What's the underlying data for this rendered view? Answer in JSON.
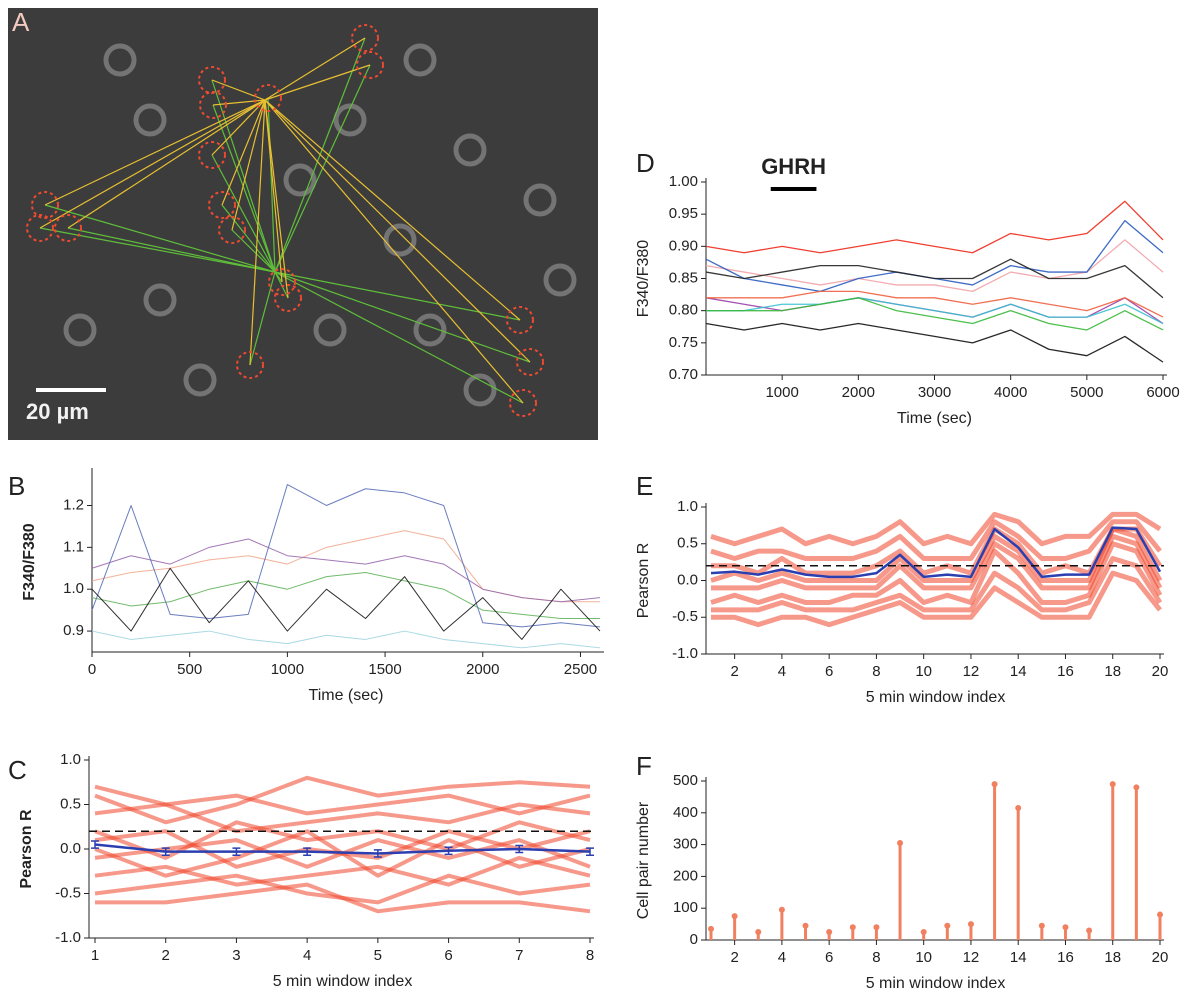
{
  "panel_a": {
    "label": "A",
    "scale_bar": "20 µm"
  },
  "chart_data": [
    {
      "type": "line",
      "panel_label": "B",
      "ylabel": "F340/F380",
      "xlabel": "Time (sec)",
      "xlim": [
        0,
        2600
      ],
      "xticks": [
        0,
        500,
        1000,
        1500,
        2000,
        2500
      ],
      "ylim": [
        0.85,
        1.28
      ],
      "yticks": [
        0.9,
        {
          "value": 1.0,
          "label": "1.0"
        },
        1.1,
        1.2
      ],
      "x": [
        0,
        200,
        400,
        600,
        800,
        1000,
        1200,
        1400,
        1600,
        1800,
        2000,
        2200,
        2400,
        2600
      ],
      "series": [
        {
          "color": "#f2a98f",
          "values": [
            1.02,
            1.04,
            1.05,
            1.07,
            1.08,
            1.06,
            1.1,
            1.12,
            1.14,
            1.12,
            1.0,
            0.98,
            0.97,
            0.97
          ]
        },
        {
          "color": "#9a6aae",
          "values": [
            1.05,
            1.08,
            1.06,
            1.1,
            1.12,
            1.08,
            1.07,
            1.06,
            1.08,
            1.06,
            1.0,
            0.98,
            0.97,
            0.98
          ]
        },
        {
          "color": "#62b55c",
          "values": [
            0.98,
            0.96,
            0.97,
            1.0,
            1.02,
            1.0,
            1.03,
            1.04,
            1.02,
            1.0,
            0.95,
            0.94,
            0.93,
            0.93
          ]
        },
        {
          "color": "#9fd4e0",
          "values": [
            0.9,
            0.88,
            0.89,
            0.9,
            0.88,
            0.87,
            0.89,
            0.88,
            0.9,
            0.88,
            0.87,
            0.86,
            0.87,
            0.86
          ]
        },
        {
          "color": "#5a6fb8",
          "values": [
            0.95,
            1.2,
            0.94,
            0.93,
            0.94,
            1.25,
            1.2,
            1.24,
            1.23,
            1.2,
            0.92,
            0.91,
            0.92,
            0.91
          ]
        },
        {
          "color": "#1a1a1a",
          "values": [
            1.0,
            0.9,
            1.05,
            0.92,
            1.02,
            0.9,
            1.0,
            0.93,
            1.03,
            0.9,
            0.98,
            0.88,
            1.0,
            0.9
          ]
        }
      ]
    },
    {
      "type": "line",
      "panel_label": "C",
      "ylabel": "Pearson R",
      "xlabel": "5 min window index",
      "xlim": [
        1,
        8
      ],
      "xticks": [
        1,
        2,
        3,
        4,
        5,
        6,
        7,
        8
      ],
      "ylim": [
        -1,
        1
      ],
      "yticks": [
        {
          "value": -1,
          "label": "-1.0"
        },
        -0.5,
        {
          "value": 0,
          "label": "0.0"
        },
        0.5,
        {
          "value": 1,
          "label": "1.0"
        }
      ],
      "reference_line": 0.2,
      "x": [
        1,
        2,
        3,
        4,
        5,
        6,
        7,
        8
      ],
      "series": [
        {
          "color": "#f0462a",
          "values": [
            0.6,
            0.3,
            0.5,
            0.8,
            0.6,
            0.7,
            0.75,
            0.7
          ]
        },
        {
          "color": "#f0462a",
          "values": [
            0.4,
            0.5,
            0.2,
            0.3,
            0.4,
            0.3,
            0.5,
            0.4
          ]
        },
        {
          "color": "#f0462a",
          "values": [
            0.2,
            -0.1,
            0.3,
            0.1,
            0.2,
            0.0,
            0.3,
            0.1
          ]
        },
        {
          "color": "#f0462a",
          "values": [
            0.1,
            0.2,
            -0.2,
            0.0,
            -0.1,
            0.2,
            0.0,
            0.2
          ]
        },
        {
          "color": "#f0462a",
          "values": [
            -0.1,
            0.0,
            0.1,
            -0.2,
            0.1,
            -0.1,
            0.1,
            -0.2
          ]
        },
        {
          "color": "#f0462a",
          "values": [
            0.0,
            -0.3,
            -0.1,
            0.2,
            -0.3,
            0.1,
            -0.2,
            0.0
          ]
        },
        {
          "color": "#f0462a",
          "values": [
            -0.3,
            -0.2,
            -0.4,
            -0.3,
            -0.2,
            -0.4,
            -0.1,
            -0.3
          ]
        },
        {
          "color": "#f0462a",
          "values": [
            -0.5,
            -0.4,
            -0.3,
            -0.5,
            -0.6,
            -0.3,
            -0.5,
            -0.4
          ]
        },
        {
          "color": "#f0462a",
          "values": [
            -0.6,
            -0.6,
            -0.5,
            -0.4,
            -0.7,
            -0.6,
            -0.6,
            -0.7
          ]
        },
        {
          "color": "#f0462a",
          "values": [
            0.7,
            0.5,
            0.6,
            0.4,
            0.5,
            0.6,
            0.4,
            0.6
          ]
        },
        {
          "color": "#2b3fb0",
          "values": [
            0.05,
            -0.03,
            -0.03,
            -0.03,
            -0.05,
            -0.02,
            0.0,
            -0.03
          ],
          "error": [
            0.04,
            0.04,
            0.04,
            0.04,
            0.04,
            0.04,
            0.04,
            0.04
          ]
        }
      ]
    },
    {
      "type": "line",
      "panel_label": "D",
      "ylabel": "F340/F380",
      "xlabel": "Time (sec)",
      "stimulus": {
        "label": "GHRH",
        "start": 850,
        "end": 1450
      },
      "xlim": [
        0,
        6000
      ],
      "xticks": [
        1000,
        2000,
        3000,
        4000,
        5000,
        6000
      ],
      "ylim": [
        0.7,
        1.0
      ],
      "yticks": [
        {
          "value": 0.7,
          "label": "0.70"
        },
        0.75,
        {
          "value": 0.8,
          "label": "0.80"
        },
        0.85,
        {
          "value": 0.9,
          "label": "0.90"
        },
        0.95,
        {
          "value": 1.0,
          "label": "1.00"
        }
      ],
      "x": [
        0,
        500,
        1000,
        1500,
        2000,
        2500,
        3000,
        3500,
        4000,
        4500,
        5000,
        5500,
        6000
      ],
      "series": [
        {
          "color": "#f2a3a8",
          "values": [
            0.87,
            0.86,
            0.85,
            0.84,
            0.85,
            0.84,
            0.84,
            0.83,
            0.86,
            0.85,
            0.86,
            0.91,
            0.86
          ]
        },
        {
          "color": "#2a5cc0",
          "values": [
            0.88,
            0.85,
            0.84,
            0.83,
            0.85,
            0.86,
            0.85,
            0.84,
            0.87,
            0.86,
            0.86,
            0.94,
            0.89
          ]
        },
        {
          "color": "#222222",
          "values": [
            0.86,
            0.85,
            0.86,
            0.87,
            0.87,
            0.86,
            0.85,
            0.85,
            0.88,
            0.85,
            0.85,
            0.87,
            0.82
          ]
        },
        {
          "color": "#9b3fa8",
          "values": [
            0.82,
            0.81,
            0.8,
            0.81,
            0.82,
            0.81,
            0.8,
            0.79,
            0.81,
            0.79,
            0.79,
            0.82,
            0.78
          ]
        },
        {
          "color": "#38c0d0",
          "values": [
            0.8,
            0.8,
            0.81,
            0.81,
            0.82,
            0.81,
            0.8,
            0.79,
            0.81,
            0.79,
            0.79,
            0.81,
            0.78
          ]
        },
        {
          "color": "#3ab83a",
          "values": [
            0.8,
            0.8,
            0.8,
            0.81,
            0.82,
            0.8,
            0.79,
            0.78,
            0.8,
            0.78,
            0.77,
            0.8,
            0.77
          ]
        },
        {
          "color": "#f06040",
          "values": [
            0.82,
            0.82,
            0.82,
            0.83,
            0.83,
            0.82,
            0.82,
            0.81,
            0.82,
            0.81,
            0.8,
            0.82,
            0.79
          ]
        },
        {
          "color": "#111111",
          "values": [
            0.78,
            0.77,
            0.78,
            0.77,
            0.78,
            0.77,
            0.76,
            0.75,
            0.77,
            0.74,
            0.73,
            0.76,
            0.72
          ]
        },
        {
          "color": "#ee2a1a",
          "values": [
            0.9,
            0.89,
            0.9,
            0.89,
            0.9,
            0.91,
            0.9,
            0.89,
            0.92,
            0.91,
            0.92,
            0.97,
            0.91
          ]
        }
      ]
    },
    {
      "type": "line",
      "panel_label": "E",
      "ylabel": "Pearson R",
      "xlabel": "5 min window index",
      "xlim": [
        1,
        20
      ],
      "xticks": [
        2,
        4,
        6,
        8,
        10,
        12,
        14,
        16,
        18,
        20
      ],
      "ylim": [
        -1,
        1
      ],
      "yticks": [
        {
          "value": -1,
          "label": "-1.0"
        },
        -0.5,
        {
          "value": 0,
          "label": "0.0"
        },
        0.5,
        {
          "value": 1,
          "label": "1.0"
        }
      ],
      "reference_line": 0.2,
      "x": [
        1,
        2,
        3,
        4,
        5,
        6,
        7,
        8,
        9,
        10,
        11,
        12,
        13,
        14,
        15,
        16,
        17,
        18,
        19,
        20
      ],
      "series": [
        {
          "color": "#f0462a",
          "values": [
            0.6,
            0.5,
            0.6,
            0.7,
            0.5,
            0.6,
            0.5,
            0.6,
            0.8,
            0.5,
            0.6,
            0.5,
            0.9,
            0.8,
            0.5,
            0.6,
            0.6,
            0.9,
            0.9,
            0.7
          ]
        },
        {
          "color": "#f0462a",
          "values": [
            0.4,
            0.3,
            0.4,
            0.4,
            0.3,
            0.3,
            0.3,
            0.4,
            0.6,
            0.3,
            0.3,
            0.3,
            0.8,
            0.6,
            0.3,
            0.3,
            0.4,
            0.8,
            0.8,
            0.4
          ]
        },
        {
          "color": "#f0462a",
          "values": [
            0.2,
            0.2,
            0.1,
            0.3,
            0.1,
            0.1,
            0.1,
            0.2,
            0.4,
            0.1,
            0.2,
            0.1,
            0.7,
            0.5,
            0.1,
            0.2,
            0.1,
            0.7,
            0.7,
            0.2
          ]
        },
        {
          "color": "#f0462a",
          "values": [
            0.0,
            0.1,
            0.0,
            0.1,
            0.0,
            0.0,
            0.0,
            0.0,
            0.3,
            0.0,
            0.0,
            0.0,
            0.6,
            0.4,
            0.0,
            0.0,
            0.0,
            0.7,
            0.6,
            0.0
          ]
        },
        {
          "color": "#f0462a",
          "values": [
            -0.1,
            -0.1,
            -0.1,
            0.0,
            -0.1,
            -0.1,
            -0.1,
            -0.1,
            0.2,
            -0.1,
            -0.1,
            -0.1,
            0.5,
            0.3,
            -0.1,
            -0.1,
            -0.1,
            0.6,
            0.5,
            -0.1
          ]
        },
        {
          "color": "#f0462a",
          "values": [
            -0.3,
            -0.2,
            -0.3,
            -0.2,
            -0.3,
            -0.3,
            -0.2,
            -0.2,
            0.0,
            -0.3,
            -0.2,
            -0.3,
            0.4,
            0.1,
            -0.3,
            -0.3,
            -0.2,
            0.5,
            0.4,
            -0.2
          ]
        },
        {
          "color": "#f0462a",
          "values": [
            -0.4,
            -0.4,
            -0.4,
            -0.3,
            -0.4,
            -0.4,
            -0.4,
            -0.3,
            -0.2,
            -0.4,
            -0.4,
            -0.4,
            0.1,
            -0.1,
            -0.4,
            -0.4,
            -0.3,
            0.3,
            0.2,
            -0.3
          ]
        },
        {
          "color": "#f0462a",
          "values": [
            -0.5,
            -0.5,
            -0.6,
            -0.5,
            -0.5,
            -0.6,
            -0.5,
            -0.4,
            -0.3,
            -0.5,
            -0.5,
            -0.5,
            -0.1,
            -0.3,
            -0.5,
            -0.5,
            -0.5,
            0.1,
            0.0,
            -0.4
          ]
        },
        {
          "color": "#2b3fb0",
          "values": [
            0.1,
            0.12,
            0.08,
            0.15,
            0.08,
            0.05,
            0.05,
            0.1,
            0.35,
            0.05,
            0.08,
            0.05,
            0.7,
            0.45,
            0.05,
            0.08,
            0.08,
            0.72,
            0.7,
            0.12
          ]
        }
      ]
    },
    {
      "type": "stem",
      "panel_label": "F",
      "ylabel": "Cell pair number",
      "xlabel": "5 min window index",
      "xlim": [
        1,
        20
      ],
      "xticks": [
        2,
        4,
        6,
        8,
        10,
        12,
        14,
        16,
        18,
        20
      ],
      "ylim": [
        0,
        500
      ],
      "yticks": [
        0,
        100,
        200,
        300,
        400,
        500
      ],
      "color": "#f08060",
      "x": [
        1,
        2,
        3,
        4,
        5,
        6,
        7,
        8,
        9,
        10,
        11,
        12,
        13,
        14,
        15,
        16,
        17,
        18,
        19,
        20
      ],
      "values": [
        35,
        75,
        25,
        95,
        45,
        25,
        40,
        40,
        305,
        25,
        45,
        50,
        490,
        415,
        45,
        40,
        30,
        490,
        480,
        80
      ]
    }
  ]
}
